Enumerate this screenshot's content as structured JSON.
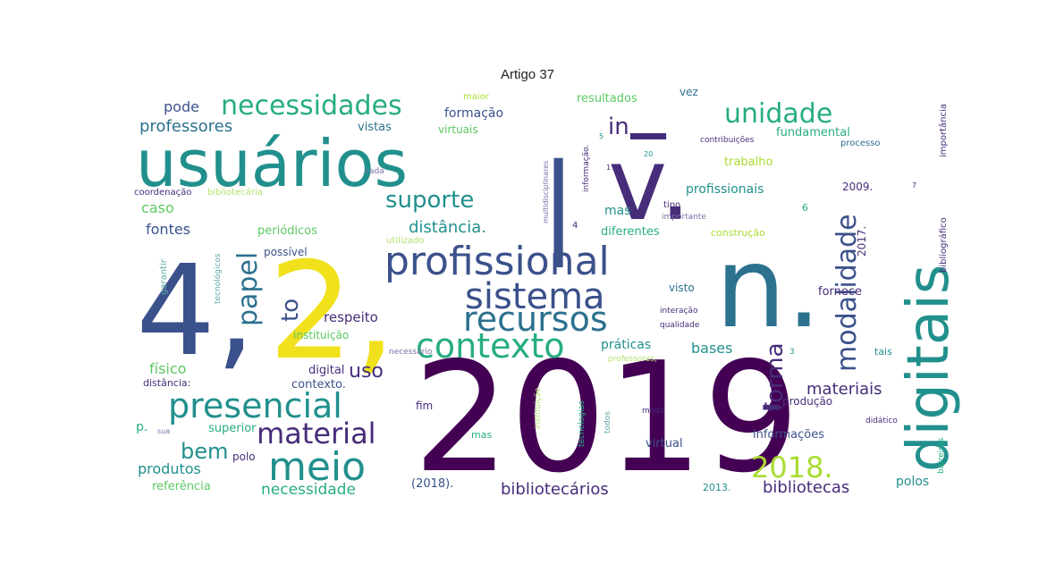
{
  "title": "Artigo 37",
  "colors": {
    "dark_purple": "#440154",
    "purple": "#472c7a",
    "indigo": "#3b518b",
    "blue": "#2c718e",
    "teal": "#21908d",
    "green": "#27ad81",
    "lime": "#5cc863",
    "yellow_green": "#aadc32",
    "yellow": "#f0e11c",
    "light_purple": "#7b6fa8",
    "light_teal": "#5fa8a5",
    "light_lime": "#b7de6e",
    "light_blue": "#7e9ab6"
  },
  "words": [
    {
      "text": "2019",
      "color": "dark_purple"
    },
    {
      "text": "4,",
      "color": "indigo"
    },
    {
      "text": "2,",
      "color": "yellow"
    },
    {
      "text": "n.",
      "color": "blue"
    },
    {
      "text": "v.",
      "color": "purple"
    },
    {
      "text": "|",
      "color": "indigo"
    },
    {
      "text": "–",
      "color": "purple"
    },
    {
      "text": "usuários",
      "color": "teal"
    },
    {
      "text": "digitais",
      "color": "teal"
    },
    {
      "text": "-",
      "color": "purple"
    },
    {
      "text": "profissional",
      "color": "indigo"
    },
    {
      "text": "sistema",
      "color": "indigo"
    },
    {
      "text": "recursos",
      "color": "blue"
    },
    {
      "text": "contexto",
      "color": "green"
    },
    {
      "text": "presencial",
      "color": "teal"
    },
    {
      "text": "meio",
      "color": "teal"
    },
    {
      "text": "material",
      "color": "purple"
    },
    {
      "text": "papel",
      "color": "blue"
    },
    {
      "text": "modalidade",
      "color": "indigo"
    },
    {
      "text": "forma",
      "color": "purple"
    },
    {
      "text": "2018.",
      "color": "yellow_green"
    },
    {
      "text": "necessidades",
      "color": "green"
    },
    {
      "text": "unidade",
      "color": "green"
    },
    {
      "text": "suporte",
      "color": "teal"
    },
    {
      "text": "to",
      "color": "indigo"
    },
    {
      "text": "in",
      "color": "purple"
    },
    {
      "text": "uso",
      "color": "purple"
    },
    {
      "text": "bem",
      "color": "teal"
    },
    {
      "text": "distância.",
      "color": "teal"
    },
    {
      "text": "materiais",
      "color": "purple"
    },
    {
      "text": "bibliotecas",
      "color": "purple"
    },
    {
      "text": "bibliotecários",
      "color": "purple"
    },
    {
      "text": "necessidade",
      "color": "green"
    },
    {
      "text": "produtos",
      "color": "teal"
    },
    {
      "text": "professores",
      "color": "blue"
    },
    {
      "text": "pode",
      "color": "indigo"
    },
    {
      "text": "caso",
      "color": "lime"
    },
    {
      "text": "fontes",
      "color": "indigo"
    },
    {
      "text": "periódicos",
      "color": "lime"
    },
    {
      "text": "possível",
      "color": "indigo"
    },
    {
      "text": "respeito",
      "color": "purple"
    },
    {
      "text": "instituição",
      "color": "lime"
    },
    {
      "text": "físico",
      "color": "lime"
    },
    {
      "text": "digital",
      "color": "purple"
    },
    {
      "text": "contexto.",
      "color": "indigo"
    },
    {
      "text": "distância:",
      "color": "purple"
    },
    {
      "text": "superior",
      "color": "green"
    },
    {
      "text": "p.",
      "color": "green"
    },
    {
      "text": "sua",
      "color": "light_purple"
    },
    {
      "text": "polo",
      "color": "purple"
    },
    {
      "text": "referência",
      "color": "lime"
    },
    {
      "text": "formação",
      "color": "indigo"
    },
    {
      "text": "vistas",
      "color": "blue"
    },
    {
      "text": "virtuais",
      "color": "lime"
    },
    {
      "text": "maior",
      "color": "yellow_green"
    },
    {
      "text": "cada",
      "color": "light_purple"
    },
    {
      "text": "coordenação",
      "color": "purple"
    },
    {
      "text": "bibliotecária",
      "color": "light_lime"
    },
    {
      "text": "utilizado",
      "color": "light_lime"
    },
    {
      "text": "necessário",
      "color": "light_purple"
    },
    {
      "text": "garantir",
      "color": "light_teal"
    },
    {
      "text": "tecnológicos",
      "color": "light_teal"
    },
    {
      "text": "práticas",
      "color": "teal"
    },
    {
      "text": "bases",
      "color": "teal"
    },
    {
      "text": "fim",
      "color": "purple"
    },
    {
      "text": "mas",
      "color": "teal"
    },
    {
      "text": "mas",
      "color": "green"
    },
    {
      "text": "(2018).",
      "color": "indigo"
    },
    {
      "text": "instituição",
      "color": "light_lime"
    },
    {
      "text": "tecnologias",
      "color": "green"
    },
    {
      "text": "todos",
      "color": "light_teal"
    },
    {
      "text": "modo",
      "color": "purple"
    },
    {
      "text": "virtual",
      "color": "indigo"
    },
    {
      "text": "informações",
      "color": "indigo"
    },
    {
      "text": "produção",
      "color": "purple"
    },
    {
      "text": "fundamental",
      "color": "green"
    },
    {
      "text": "trabalho",
      "color": "yellow_green"
    },
    {
      "text": "profissionais",
      "color": "teal"
    },
    {
      "text": "tipo",
      "color": "purple"
    },
    {
      "text": "importante",
      "color": "light_purple"
    },
    {
      "text": "diferentes",
      "color": "green"
    },
    {
      "text": "construção",
      "color": "yellow_green"
    },
    {
      "text": "visto",
      "color": "blue"
    },
    {
      "text": "interação",
      "color": "purple"
    },
    {
      "text": "qualidade",
      "color": "purple"
    },
    {
      "text": "professores,",
      "color": "light_lime"
    },
    {
      "text": "resultados",
      "color": "lime"
    },
    {
      "text": "vez",
      "color": "blue"
    },
    {
      "text": "contribuições",
      "color": "purple"
    },
    {
      "text": "processo",
      "color": "blue"
    },
    {
      "text": "2009.",
      "color": "purple"
    },
    {
      "text": "2017.",
      "color": "purple"
    },
    {
      "text": "fornece",
      "color": "purple"
    },
    {
      "text": "tais",
      "color": "teal"
    },
    {
      "text": "didático",
      "color": "purple"
    },
    {
      "text": "barreiras",
      "color": "green"
    },
    {
      "text": "polos",
      "color": "teal"
    },
    {
      "text": "2013.",
      "color": "teal"
    },
    {
      "text": "bibliográfico",
      "color": "purple"
    },
    {
      "text": "importância",
      "color": "purple"
    },
    {
      "text": "multidisciplinares",
      "color": "light_purple"
    },
    {
      "text": "informação.",
      "color": "purple"
    },
    {
      "text": "5",
      "color": "teal"
    },
    {
      "text": "1",
      "color": "purple"
    },
    {
      "text": "20",
      "color": "teal"
    },
    {
      "text": "4",
      "color": "purple"
    },
    {
      "text": "6",
      "color": "green"
    },
    {
      "text": "7",
      "color": "purple"
    },
    {
      "text": "3",
      "color": "teal"
    }
  ]
}
